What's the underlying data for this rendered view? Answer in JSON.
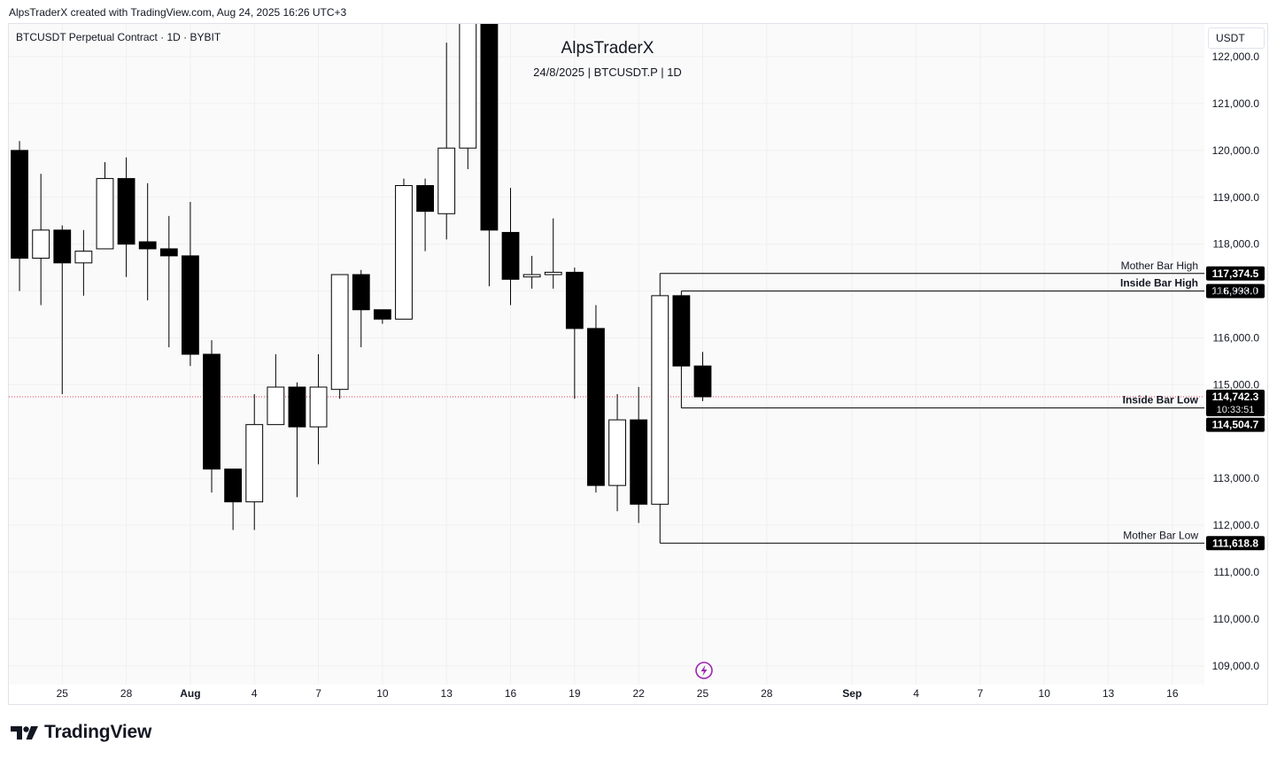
{
  "header": {
    "caption": "AlpsTraderX created with TradingView.com, Aug 24, 2025 16:26 UTC+3",
    "symbol_label": "BTCUSDT Perpetual Contract · 1D · BYBIT",
    "title": "AlpsTraderX",
    "subtitle": "24/8/2025 | BTCUSDT.P | 1D",
    "currency": "USDT"
  },
  "footer": {
    "brand": "TradingView"
  },
  "icons": {
    "logo": "tradingview-logo-icon",
    "alert": "lightning-bolt-icon"
  },
  "colors": {
    "candle": "#000000",
    "candle_up_fill": "#ffffff",
    "candle_down_fill": "#000000",
    "level_line": "#000000",
    "last_price_line": "#e0405a",
    "alert_icon": "#9c27b0"
  },
  "chart_data": {
    "type": "candlestick",
    "title": "AlpsTraderX",
    "xlabel": "",
    "ylabel": "",
    "ylim": [
      108600,
      122700
    ],
    "y_ticks": [
      122000,
      121000,
      120000,
      119000,
      118000,
      117000,
      116000,
      115000,
      113000,
      112000,
      111000,
      110000,
      109000
    ],
    "y_tick_labels": [
      "122,000.0",
      "121,000.0",
      "120,000.0",
      "119,000.0",
      "118,000.0",
      "117,000.0",
      "116,000.0",
      "115,000.0",
      "113,000.0",
      "112,000.0",
      "111,000.0",
      "110,000.0",
      "109,000.0"
    ],
    "x_ticks": [
      {
        "day": 25,
        "label": "25"
      },
      {
        "day": 28,
        "label": "28"
      },
      {
        "day": 31,
        "label": "Aug"
      },
      {
        "day": 34,
        "label": "4"
      },
      {
        "day": 37,
        "label": "7"
      },
      {
        "day": 40,
        "label": "10"
      },
      {
        "day": 43,
        "label": "13"
      },
      {
        "day": 46,
        "label": "16"
      },
      {
        "day": 49,
        "label": "19"
      },
      {
        "day": 52,
        "label": "22"
      },
      {
        "day": 55,
        "label": "25"
      },
      {
        "day": 58,
        "label": "28"
      },
      {
        "day": 62,
        "label": "Sep"
      },
      {
        "day": 65,
        "label": "4"
      },
      {
        "day": 68,
        "label": "7"
      },
      {
        "day": 71,
        "label": "10"
      },
      {
        "day": 74,
        "label": "13"
      },
      {
        "day": 77,
        "label": "16"
      }
    ],
    "x_range": [
      22.5,
      78.5
    ],
    "candles": [
      {
        "d": 23,
        "o": 120000,
        "h": 120200,
        "l": 117000,
        "c": 117700
      },
      {
        "d": 24,
        "o": 117700,
        "h": 119500,
        "l": 116700,
        "c": 118300
      },
      {
        "d": 25,
        "o": 118300,
        "h": 118400,
        "l": 114800,
        "c": 117600
      },
      {
        "d": 26,
        "o": 117600,
        "h": 118300,
        "l": 116900,
        "c": 117850
      },
      {
        "d": 27,
        "o": 117900,
        "h": 119750,
        "l": 117900,
        "c": 119400
      },
      {
        "d": 28,
        "o": 119400,
        "h": 119850,
        "l": 117300,
        "c": 118000
      },
      {
        "d": 29,
        "o": 118050,
        "h": 119300,
        "l": 116800,
        "c": 117900
      },
      {
        "d": 30,
        "o": 117900,
        "h": 118600,
        "l": 115800,
        "c": 117750
      },
      {
        "d": 31,
        "o": 117750,
        "h": 118900,
        "l": 115400,
        "c": 115650
      },
      {
        "d": 32,
        "o": 115650,
        "h": 115950,
        "l": 112700,
        "c": 113200
      },
      {
        "d": 33,
        "o": 113200,
        "h": 113200,
        "l": 111900,
        "c": 112500
      },
      {
        "d": 34,
        "o": 112500,
        "h": 114800,
        "l": 111900,
        "c": 114150
      },
      {
        "d": 35,
        "o": 114150,
        "h": 115650,
        "l": 114150,
        "c": 114950
      },
      {
        "d": 36,
        "o": 114950,
        "h": 115050,
        "l": 112600,
        "c": 114100
      },
      {
        "d": 37,
        "o": 114100,
        "h": 115650,
        "l": 113300,
        "c": 114950
      },
      {
        "d": 38,
        "o": 114900,
        "h": 117350,
        "l": 114700,
        "c": 117350
      },
      {
        "d": 39,
        "o": 117350,
        "h": 117450,
        "l": 115800,
        "c": 116600
      },
      {
        "d": 40,
        "o": 116600,
        "h": 116600,
        "l": 116300,
        "c": 116400
      },
      {
        "d": 41,
        "o": 116400,
        "h": 119400,
        "l": 116400,
        "c": 119250
      },
      {
        "d": 42,
        "o": 119250,
        "h": 119400,
        "l": 117850,
        "c": 118700
      },
      {
        "d": 43,
        "o": 118650,
        "h": 122300,
        "l": 118100,
        "c": 120050
      },
      {
        "d": 44,
        "o": 120050,
        "h": 123500,
        "l": 119600,
        "c": 123300
      },
      {
        "d": 45,
        "o": 123300,
        "h": 124300,
        "l": 117100,
        "c": 118300
      },
      {
        "d": 46,
        "o": 118250,
        "h": 119200,
        "l": 116700,
        "c": 117250
      },
      {
        "d": 47,
        "o": 117300,
        "h": 117750,
        "l": 117050,
        "c": 117350
      },
      {
        "d": 48,
        "o": 117350,
        "h": 118550,
        "l": 117050,
        "c": 117400
      },
      {
        "d": 49,
        "o": 117400,
        "h": 117500,
        "l": 114700,
        "c": 116200
      },
      {
        "d": 50,
        "o": 116200,
        "h": 116700,
        "l": 112700,
        "c": 112850
      },
      {
        "d": 51,
        "o": 112850,
        "h": 114800,
        "l": 112300,
        "c": 114250
      },
      {
        "d": 52,
        "o": 114250,
        "h": 114950,
        "l": 112050,
        "c": 112450
      },
      {
        "d": 53,
        "o": 112450,
        "h": 117374.5,
        "l": 111618.8,
        "c": 116900
      },
      {
        "d": 54,
        "o": 116900,
        "h": 116998,
        "l": 114504.7,
        "c": 115400
      },
      {
        "d": 55,
        "o": 115400,
        "h": 115700,
        "l": 114650,
        "c": 114742.3
      }
    ],
    "levels": [
      {
        "name": "Mother Bar High",
        "value": 117374.5,
        "label": "117,374.5",
        "start_day": 53
      },
      {
        "name": "Inside Bar High",
        "value": 116998.0,
        "label": "116,998.0",
        "start_day": 54
      },
      {
        "name": "Inside Bar Low",
        "value": 114504.7,
        "label": "114,504.7",
        "start_day": 54
      },
      {
        "name": "Mother Bar Low",
        "value": 111618.8,
        "label": "111,618.8",
        "start_day": 53
      }
    ],
    "last_price": {
      "value": 114742.3,
      "label": "114,742.3",
      "countdown": "10:33:51"
    }
  }
}
